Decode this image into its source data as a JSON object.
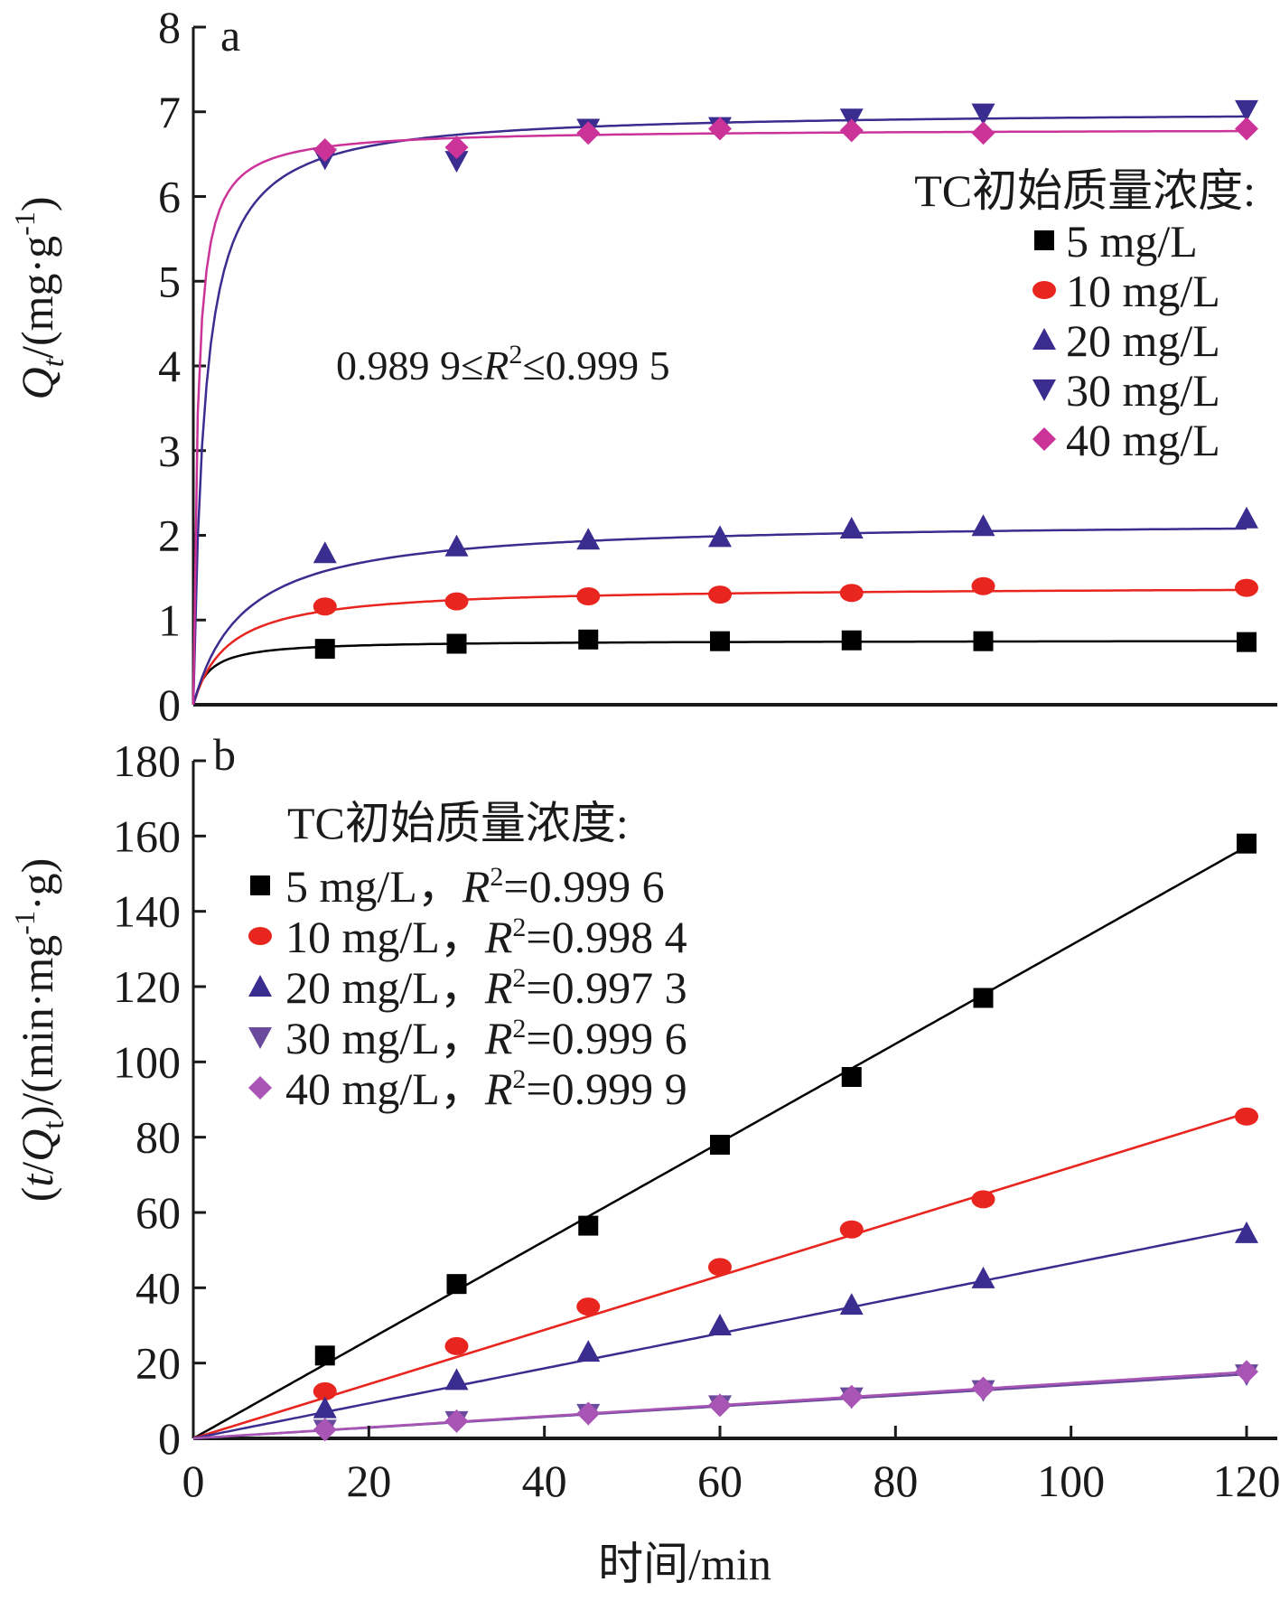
{
  "x_axis": {
    "label": "时间/min",
    "ticks": [
      "0",
      "20",
      "40",
      "60",
      "80",
      "100",
      "120"
    ]
  },
  "chart_data": [
    {
      "type": "scatter",
      "panel_label": "a",
      "ylabel": "Qt/(mg·g-1)",
      "ylabel_parts": {
        "q": "Q",
        "sub": "t",
        "unit": "/(mg·g",
        "sup": "-1",
        "close": ")"
      },
      "xlim": [
        0,
        120
      ],
      "ylim": [
        0,
        8
      ],
      "yticks": [
        "0",
        "1",
        "2",
        "3",
        "4",
        "5",
        "6",
        "7",
        "8"
      ],
      "annotation": "0.989 9≤R²≤0.999 5",
      "annotation_parts": {
        "a": "0.989 9≤",
        "r": "R",
        "sup": "2",
        "b": "≤0.999 5"
      },
      "legend_title": "TC初始质量浓度:",
      "legend_position": "right",
      "series": [
        {
          "name": "5 mg/L",
          "color": "#000000",
          "marker": "square",
          "x": [
            15,
            30,
            45,
            60,
            75,
            90,
            120
          ],
          "y": [
            0.66,
            0.72,
            0.77,
            0.75,
            0.76,
            0.75,
            0.74
          ],
          "fit": {
            "qe": 0.76,
            "k": 0.8
          }
        },
        {
          "name": "10 mg/L",
          "color": "#e8251f",
          "marker": "circle",
          "x": [
            15,
            30,
            45,
            60,
            75,
            90,
            120
          ],
          "y": [
            1.16,
            1.22,
            1.28,
            1.3,
            1.32,
            1.4,
            1.38
          ],
          "fit": {
            "qe": 1.4,
            "k": 0.18
          }
        },
        {
          "name": "20 mg/L",
          "color": "#3a2d8f",
          "marker": "triangle-up",
          "x": [
            15,
            30,
            45,
            60,
            75,
            90,
            120
          ],
          "y": [
            1.79,
            1.87,
            1.95,
            1.98,
            2.08,
            2.11,
            2.2
          ],
          "fit": {
            "qe": 2.18,
            "k": 0.08
          }
        },
        {
          "name": "30 mg/L",
          "color": "#3a2d8f",
          "marker": "triangle-down",
          "x": [
            15,
            30,
            45,
            60,
            75,
            90,
            120
          ],
          "y": [
            6.45,
            6.42,
            6.8,
            6.82,
            6.92,
            6.98,
            7.02
          ],
          "fit": {
            "qe": 7.02,
            "k": 0.11
          }
        },
        {
          "name": "40 mg/L",
          "color": "#cc3399",
          "marker": "diamond",
          "x": [
            15,
            30,
            45,
            60,
            75,
            90,
            120
          ],
          "y": [
            6.55,
            6.58,
            6.75,
            6.8,
            6.78,
            6.75,
            6.8
          ],
          "fit": {
            "qe": 6.8,
            "k": 0.3
          }
        }
      ]
    },
    {
      "type": "scatter",
      "panel_label": "b",
      "ylabel": "(t/Qt)/(min·mg-1·g)",
      "ylabel_parts": {
        "open": "(",
        "t": "t",
        "slash": "/",
        "q": "Q",
        "sub": "t",
        "unit": ")/(min·mg",
        "sup": "-1",
        "end": "·g)"
      },
      "xlim": [
        0,
        120
      ],
      "ylim": [
        0,
        180
      ],
      "yticks": [
        "0",
        "20",
        "40",
        "60",
        "80",
        "100",
        "120",
        "140",
        "160",
        "180"
      ],
      "legend_title": "TC初始质量浓度:",
      "legend_position": "top-left",
      "series": [
        {
          "name": "5 mg/L",
          "r2_label": "R",
          "r2_sup": "2",
          "r2_value": "=0.999 6",
          "color": "#000000",
          "marker": "square",
          "x": [
            15,
            30,
            45,
            60,
            75,
            90,
            120
          ],
          "y": [
            22,
            41,
            56.5,
            78,
            96,
            117,
            158
          ],
          "fit": {
            "slope": 1.31,
            "intercept": 0
          }
        },
        {
          "name": "10 mg/L",
          "r2_label": "R",
          "r2_sup": "2",
          "r2_value": "=0.998 4",
          "color": "#e8251f",
          "marker": "circle",
          "x": [
            15,
            30,
            45,
            60,
            75,
            90,
            120
          ],
          "y": [
            12.5,
            24.5,
            35,
            45.5,
            55.5,
            63.5,
            85.5
          ],
          "fit": {
            "slope": 0.72,
            "intercept": 0
          }
        },
        {
          "name": "20 mg/L",
          "r2_label": "R",
          "r2_sup": "2",
          "r2_value": "=0.997 3",
          "color": "#3a2d8f",
          "marker": "triangle-up",
          "x": [
            15,
            30,
            45,
            60,
            75,
            90,
            120
          ],
          "y": [
            8,
            15.5,
            23,
            30,
            35.5,
            42.5,
            54.5
          ],
          "fit": {
            "slope": 0.465,
            "intercept": 0
          }
        },
        {
          "name": "30 mg/L",
          "r2_label": "R",
          "r2_sup": "2",
          "r2_value": "=0.999 6",
          "color": "#6a4a9c",
          "marker": "triangle-down",
          "x": [
            15,
            30,
            45,
            60,
            75,
            90,
            120
          ],
          "y": [
            2.3,
            4.6,
            6.5,
            8.8,
            10.9,
            12.8,
            17
          ],
          "fit": {
            "slope": 0.142,
            "intercept": 0
          }
        },
        {
          "name": "40 mg/L",
          "r2_label": "R",
          "r2_sup": "2",
          "r2_value": "=0.999 9",
          "color": "#a855b5",
          "marker": "diamond",
          "x": [
            15,
            30,
            45,
            60,
            75,
            90,
            120
          ],
          "y": [
            2.3,
            4.6,
            6.6,
            8.8,
            11.1,
            13.3,
            17.7
          ],
          "fit": {
            "slope": 0.147,
            "intercept": 0
          }
        }
      ]
    }
  ]
}
